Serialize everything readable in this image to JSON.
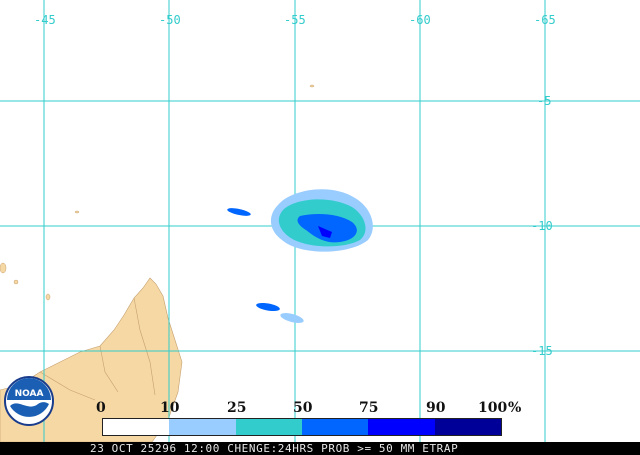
{
  "map": {
    "longitude_labels": [
      "-45",
      "-50",
      "-55",
      "-60",
      "-65"
    ],
    "latitude_labels": [
      "-5",
      "-10",
      "-15"
    ],
    "land_color": "#f6d8a4",
    "grid_color": "#33cccc"
  },
  "legend": {
    "ticks": [
      "0",
      "10",
      "25",
      "50",
      "75",
      "90",
      "100"
    ],
    "unit": "%",
    "colors": [
      "#ffffff",
      "#99ccff",
      "#33cccc",
      "#0066ff",
      "#0000ff",
      "#000099"
    ]
  },
  "footer": {
    "text": "23 OCT 25296 12:00 CHENGE:24HRS PROB >= 50 MM ETRAP"
  },
  "logo": {
    "text": "NOAA",
    "icon": "noaa-logo-icon"
  }
}
